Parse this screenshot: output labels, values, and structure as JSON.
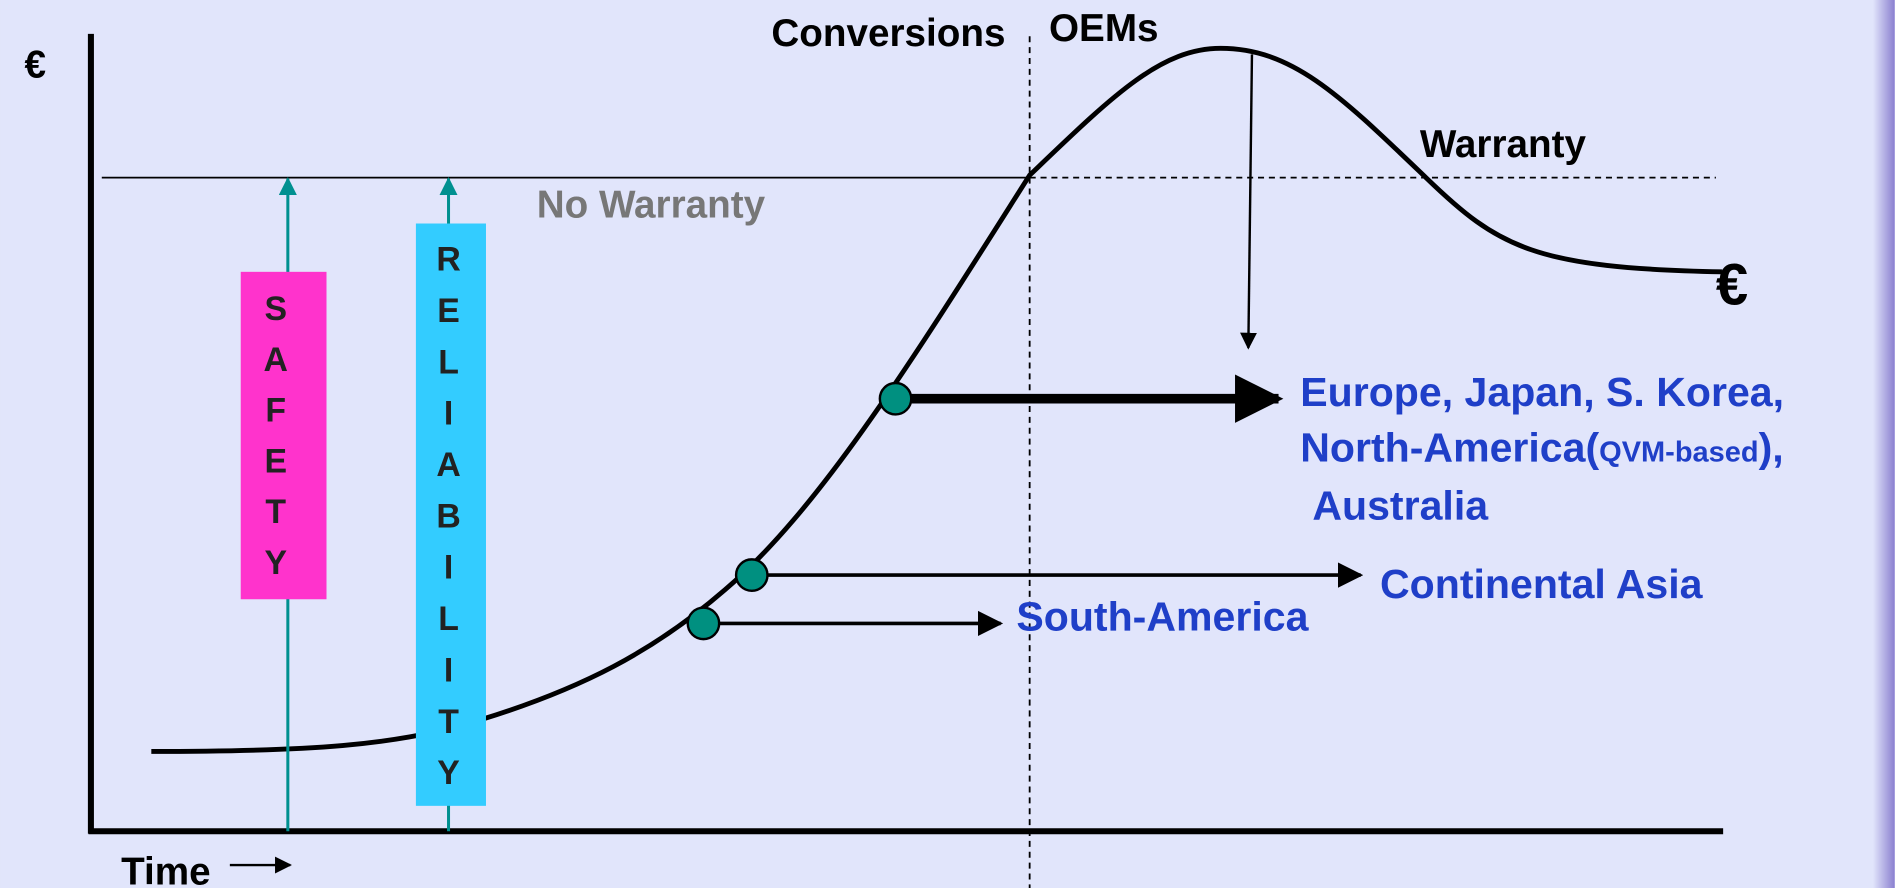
{
  "diagram": {
    "y_axis_label": "€",
    "x_axis_label": "Time",
    "conversions": "Conversions",
    "oems": "OEMs",
    "warranty": "Warranty",
    "no_warranty": "No Warranty",
    "end_symbol": "€",
    "safety": [
      "S",
      "A",
      "F",
      "E",
      "T",
      "Y"
    ],
    "reliability": [
      "R",
      "E",
      "L",
      "I",
      "A",
      "B",
      "I",
      "L",
      "I",
      "T",
      "Y"
    ],
    "regions": {
      "europe_line1": "Europe, Japan, S. Korea,",
      "europe_line2": [
        "North-America(",
        "QVM-based",
        "),"
      ],
      "europe_line3": "Australia",
      "continental_asia": "Continental Asia",
      "south_america": "South-America"
    }
  }
}
